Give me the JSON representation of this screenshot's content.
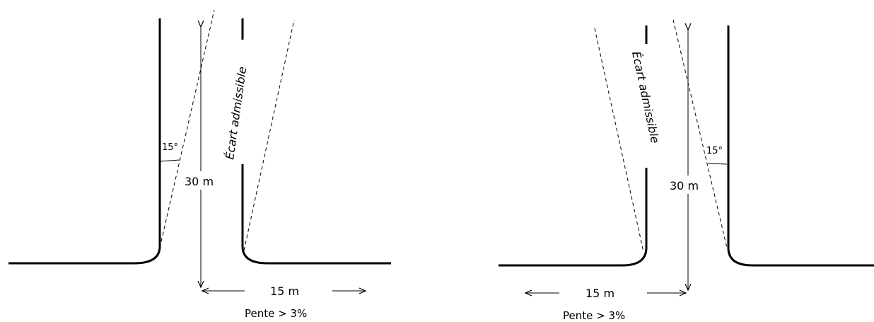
{
  "diagrams": [
    {
      "angle_label": "15°",
      "height_label": "30 m",
      "width_label": "15 m",
      "slope_label": "Pente > 3%",
      "zone_label": "Écart admissible"
    },
    {
      "angle_label": "15°",
      "height_label": "30 m",
      "width_label": "15 m",
      "slope_label": "Pente > 3%",
      "zone_label": "Écart admissible"
    }
  ]
}
